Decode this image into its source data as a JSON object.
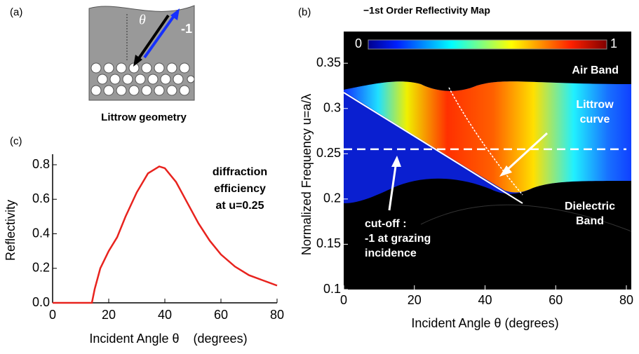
{
  "chart_data": [
    {
      "type": "diagram",
      "panel_label": "(a)",
      "angle_symbol": "θ",
      "order_label": "-1",
      "caption": "Littrow geometry"
    },
    {
      "type": "heatmap",
      "panel_label": "(b)",
      "title": "−1st Order Reflectivity Map",
      "xlabel": "Incident Angle θ (degrees)",
      "ylabel": "Normalized Frequency u=a/λ",
      "xlim": [
        0,
        80
      ],
      "xticks": [
        0,
        20,
        40,
        60,
        80
      ],
      "ylim": [
        0.1,
        0.385
      ],
      "yticks": [
        0.1,
        0.15,
        0.2,
        0.25,
        0.3,
        0.35
      ],
      "colorbar": {
        "min": 0,
        "max": 1
      },
      "reference_line": 0.255,
      "annotations": {
        "air_band": "Air Band",
        "littrow": [
          "Littrow",
          "curve"
        ],
        "dielectric": [
          "Dielectric",
          "Band"
        ],
        "cutoff": [
          "cut-off :",
          "-1 at grazing",
          "incidence"
        ]
      }
    },
    {
      "type": "line",
      "panel_label": "(c)",
      "xlabel": "Incident Angle θ    (degrees)",
      "ylabel": "Reflectivity",
      "xlim": [
        0,
        80
      ],
      "xticks": [
        0,
        20,
        40,
        60,
        80
      ],
      "ylim": [
        0,
        0.8
      ],
      "yticks": [
        {
          "value": 0,
          "label": "0.0"
        },
        0.2,
        0.4,
        0.6,
        0.8
      ],
      "color": "#e8231e",
      "x": [
        0,
        14,
        15,
        17,
        20,
        23,
        26,
        30,
        34,
        38,
        40,
        44,
        48,
        52,
        56,
        60,
        65,
        70,
        75,
        80
      ],
      "values": [
        0,
        0,
        0.08,
        0.2,
        0.3,
        0.38,
        0.5,
        0.64,
        0.75,
        0.79,
        0.78,
        0.7,
        0.58,
        0.46,
        0.36,
        0.28,
        0.21,
        0.16,
        0.13,
        0.1
      ],
      "annotation": [
        "diffraction",
        "efficiency",
        "at u=0.25"
      ]
    }
  ]
}
